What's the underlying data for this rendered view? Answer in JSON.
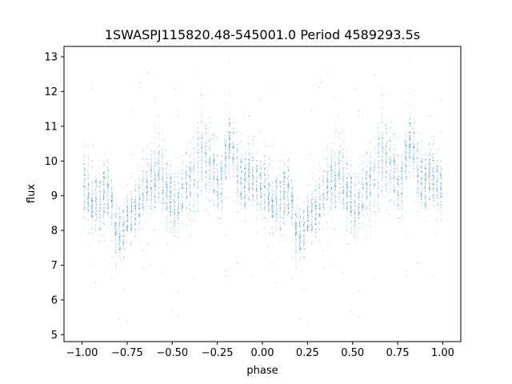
{
  "chart_data": {
    "type": "scatter",
    "title": "1SWASPJ115820.48-545001.0 Period 4589293.5s",
    "xlabel": "phase",
    "ylabel": "flux",
    "xlim": [
      -1.1,
      1.1
    ],
    "ylim": [
      4.8,
      13.3
    ],
    "xticks": [
      -1.0,
      -0.75,
      -0.5,
      -0.25,
      0.0,
      0.25,
      0.5,
      0.75,
      1.0
    ],
    "xtick_labels": [
      "−1.00",
      "−0.75",
      "−0.50",
      "−0.25",
      "0.00",
      "0.25",
      "0.50",
      "0.75",
      "1.00"
    ],
    "yticks": [
      5,
      6,
      7,
      8,
      9,
      10,
      11,
      12,
      13
    ],
    "ytick_labels": [
      "5",
      "6",
      "7",
      "8",
      "9",
      "10",
      "11",
      "12",
      "13"
    ],
    "grid": false,
    "point_color": "#1f77b4",
    "phase_profile": {
      "phase": [
        0.0,
        0.03,
        0.06,
        0.1,
        0.15,
        0.18,
        0.22,
        0.26,
        0.3,
        0.34,
        0.38,
        0.42,
        0.46,
        0.5,
        0.54,
        0.58,
        0.62,
        0.66,
        0.7,
        0.74,
        0.78,
        0.82,
        0.86,
        0.9,
        0.94,
        0.97,
        1.0
      ],
      "flux_center": [
        9.3,
        9.1,
        8.7,
        8.9,
        9.3,
        8.0,
        7.9,
        8.4,
        8.7,
        9.0,
        9.3,
        9.8,
        9.2,
        8.8,
        8.7,
        9.3,
        9.4,
        10.4,
        10.0,
        9.4,
        9.5,
        10.8,
        9.6,
        9.3,
        9.7,
        9.4,
        9.0
      ],
      "flux_spread": [
        0.6,
        0.55,
        0.5,
        0.6,
        0.5,
        0.45,
        0.45,
        0.5,
        0.55,
        0.6,
        0.65,
        0.7,
        0.6,
        0.6,
        0.6,
        0.7,
        0.7,
        0.8,
        0.7,
        0.7,
        0.55,
        0.5,
        0.55,
        0.5,
        0.55,
        0.5,
        0.6
      ]
    }
  }
}
